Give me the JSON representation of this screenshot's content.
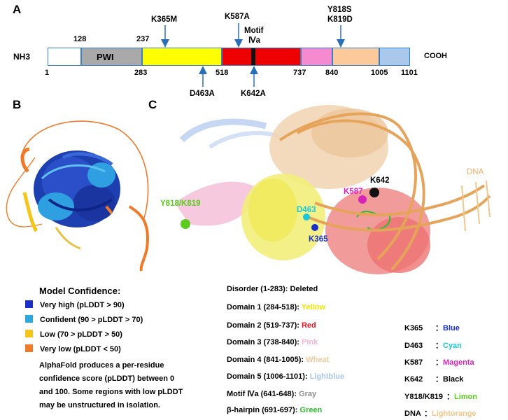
{
  "panels": {
    "a": "A",
    "b": "B",
    "c": "C"
  },
  "domain_map": {
    "n_term": "NH3",
    "c_term": "COOH",
    "pwi_label": "PWI",
    "motif_label_line1": "Motif",
    "motif_label_line2": "Ⅳa",
    "positions_top": [
      "128",
      "237"
    ],
    "positions_bottom": [
      "1",
      "283",
      "518",
      "737",
      "840",
      "1005",
      "1101"
    ],
    "mutations_top": [
      "K365M",
      "K587A",
      "Y818S",
      "K819D"
    ],
    "mutations_bottom": [
      "D463A",
      "K642A"
    ]
  },
  "structure_labels": {
    "dna": "DNA",
    "k642": "K642",
    "k587": "K587",
    "d463": "D463",
    "k365": "K365",
    "y818_k819": "Y818/K819"
  },
  "model_confidence": {
    "title": "Model Confidence:",
    "items": [
      {
        "label": "Very high (pLDDT > 90)",
        "color": "#1a2fc7"
      },
      {
        "label": "Confident (90 > pLDDT > 70)",
        "color": "#29a8e0"
      },
      {
        "label": "Low (70 > pLDDT > 50)",
        "color": "#f5c518"
      },
      {
        "label": "Very low (pLDDT < 50)",
        "color": "#ef7a2a"
      }
    ],
    "note_lines": [
      "AlphaFold produces a per-residue",
      "confidence score (pLDDT) between 0",
      "and 100. Some regions with low pLDDT",
      "may be unstructured in isolation."
    ]
  },
  "domains": [
    {
      "label": "Disorder (1-283): ",
      "color_name": "Deleted",
      "color": "#000000"
    },
    {
      "label": "Domain 1 (284-518): ",
      "color_name": "Yellow",
      "color": "#f2e600"
    },
    {
      "label": "Domain 2 (519-737): ",
      "color_name": "Red",
      "color": "#e8141c"
    },
    {
      "label": "Domain 3 (738-840): ",
      "color_name": "Pink",
      "color": "#f4b6d8"
    },
    {
      "label": "Domain 4 (841-1005): ",
      "color_name": "Wheat",
      "color": "#f2c99a"
    },
    {
      "label": "Domain 5 (1006-1101): ",
      "color_name": "Lightblue",
      "color": "#a8c6ea"
    },
    {
      "label": "Motif Ⅳa (641-648): ",
      "color_name": "Gray",
      "color": "#8c8c8c"
    },
    {
      "label": "β-hairpin (691-697): ",
      "color_name": "Green",
      "color": "#2bbf2b"
    }
  ],
  "residues": [
    {
      "name": "K365",
      "sep": "：",
      "color_name": "Blue",
      "color": "#1a2fc7"
    },
    {
      "name": "D463",
      "sep": "：",
      "color_name": "Cyan",
      "color": "#18c8d8"
    },
    {
      "name": "K587",
      "sep": "：",
      "color_name": "Magenta",
      "color": "#d424b8"
    },
    {
      "name": "K642",
      "sep": "：",
      "color_name": "Black",
      "color": "#000000"
    },
    {
      "name": "Y818/K819",
      "sep": "：",
      "color_name": "Limon",
      "color": "#5ccc1e"
    },
    {
      "name": "DNA",
      "sep": "：",
      "color_name": "Lightorange",
      "color": "#f5c58a"
    }
  ]
}
